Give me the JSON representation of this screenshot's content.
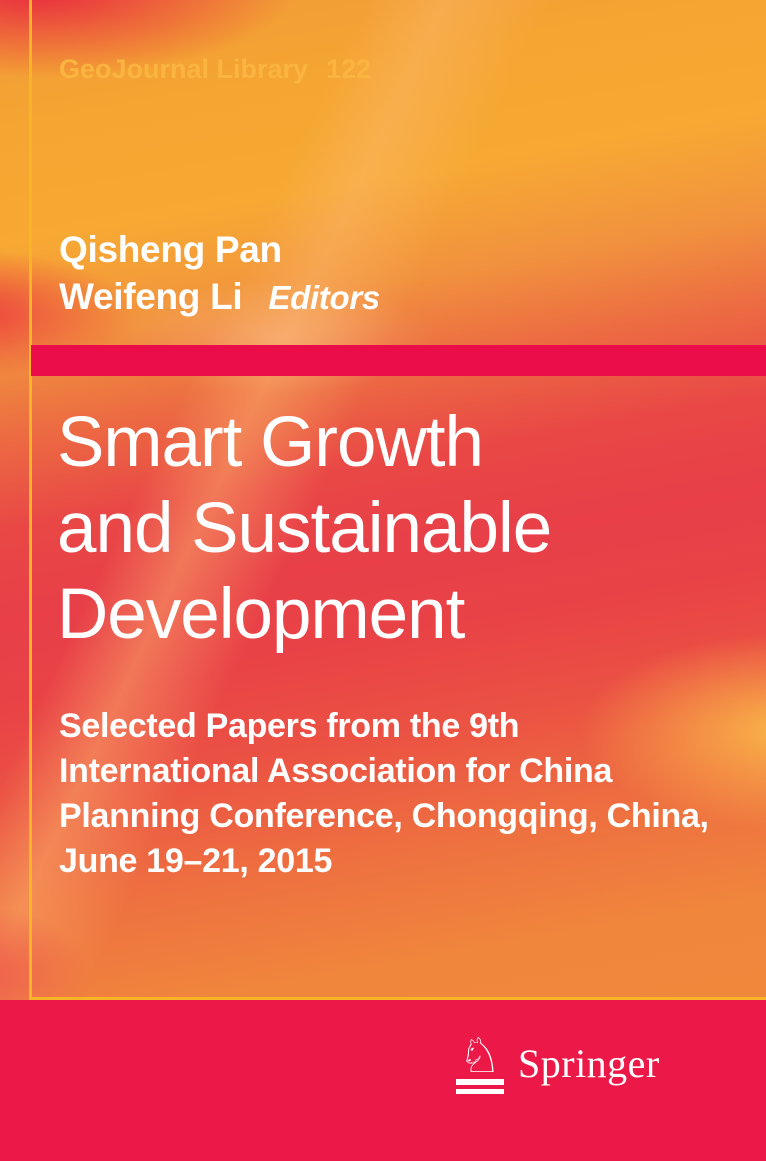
{
  "series": {
    "name": "GeoJournal Library",
    "number": "122"
  },
  "editors": {
    "name1": "Qisheng Pan",
    "name2": "Weifeng Li",
    "role_label": "Editors"
  },
  "title": {
    "line1": "Smart Growth",
    "line2": "and Sustainable",
    "line3": "Development"
  },
  "subtitle": {
    "line1": "Selected Papers from the 9th",
    "line2": "International Association for China",
    "line3": "Planning Conference, Chongqing, China,",
    "line4": "June 19–21, 2015"
  },
  "publisher": {
    "name": "Springer",
    "logo_icon": "springer-horse-knight",
    "knight_glyph": "♘"
  },
  "colors": {
    "series_gold": "#fbb440",
    "rule_yellow": "#f9b327",
    "stripe_crimson": "#ea0d49",
    "band_crimson": "#ec1847",
    "text_white": "#ffffff",
    "cover_orange": "#f0863c",
    "cover_red": "#e83f48"
  }
}
